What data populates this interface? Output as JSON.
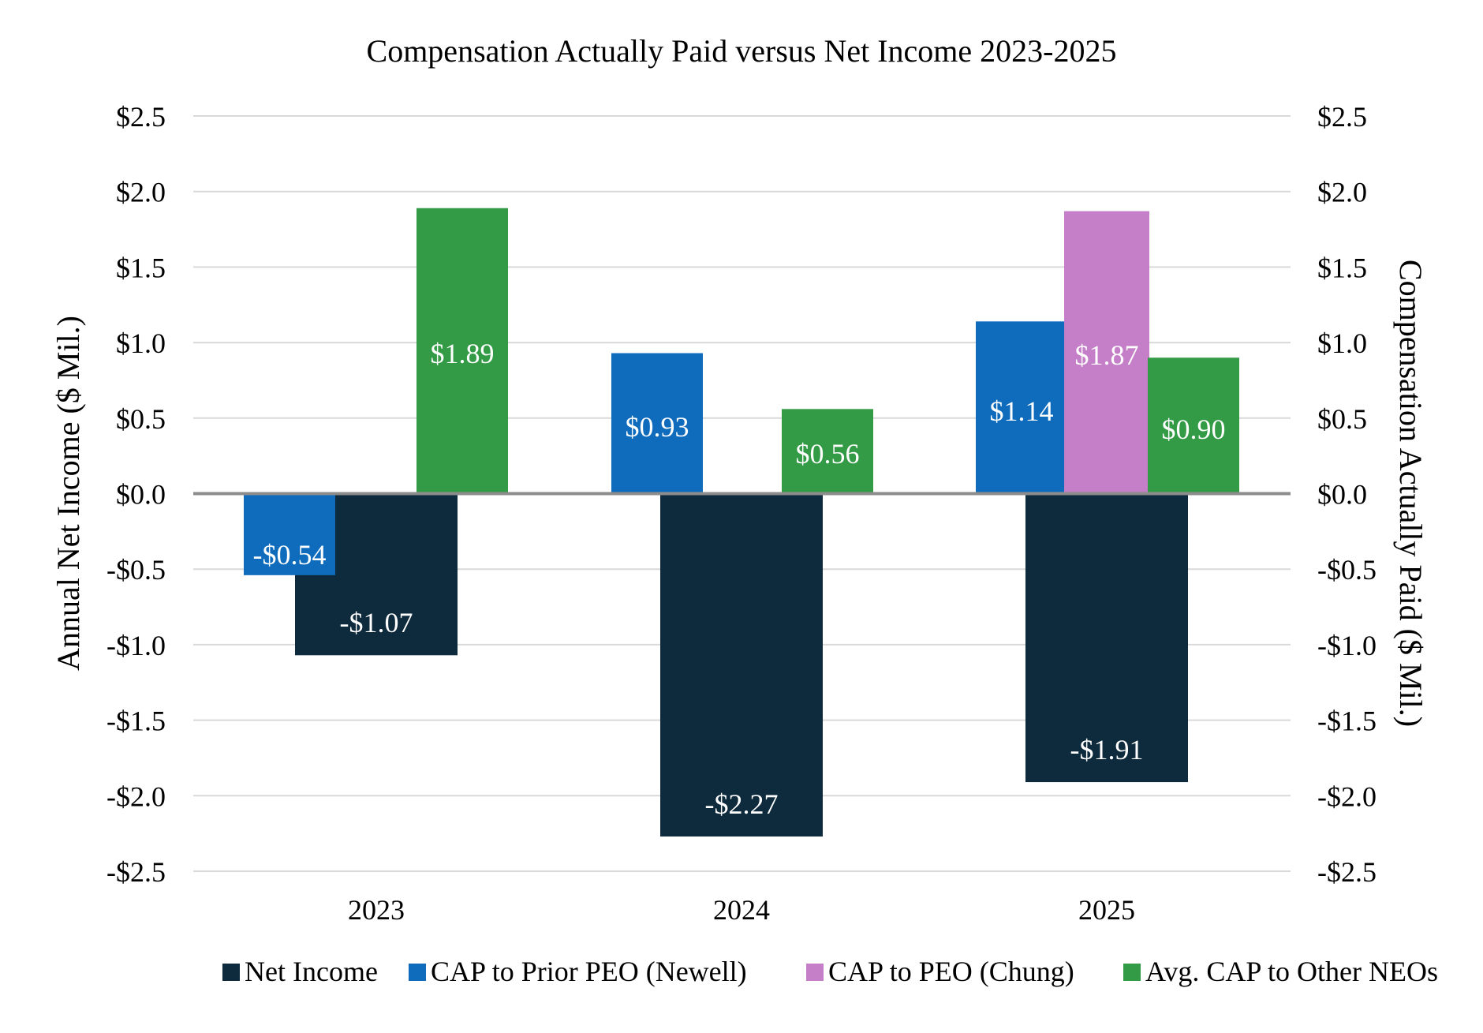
{
  "chart_data": {
    "type": "bar",
    "title": "Compensation Actually Paid versus Net Income 2023-2025",
    "categories": [
      "2023",
      "2024",
      "2025"
    ],
    "ylabel_left": "Annual Net Income ($ Mil.)",
    "ylabel_right": "Compensation Actually Paid ($ Mil.)",
    "ylim": [
      -2.5,
      2.5
    ],
    "ytick_step": 0.5,
    "yticks": [
      "$2.5",
      "$2.0",
      "$1.5",
      "$1.0",
      "$0.5",
      "$0.0",
      "-$0.5",
      "-$1.0",
      "-$1.5",
      "-$2.0",
      "-$2.5"
    ],
    "ytick_values": [
      2.5,
      2.0,
      1.5,
      1.0,
      0.5,
      0.0,
      -0.5,
      -1.0,
      -1.5,
      -2.0,
      -2.5
    ],
    "grid": true,
    "legend_position": "bottom",
    "series": [
      {
        "name": "Net Income",
        "axis": "left",
        "color": "#0e2a3d",
        "values": [
          -1.07,
          -2.27,
          -1.91
        ],
        "labels": [
          "-$1.07",
          "-$2.27",
          "-$1.91"
        ]
      },
      {
        "name": "CAP to Prior PEO (Newell)",
        "axis": "right",
        "color": "#0f6cbd",
        "values": [
          -0.54,
          0.93,
          1.14
        ],
        "labels": [
          "-$0.54",
          "$0.93",
          "$1.14"
        ]
      },
      {
        "name": "CAP to PEO (Chung)",
        "axis": "right",
        "color": "#c57fc8",
        "values": [
          null,
          null,
          1.87
        ],
        "labels": [
          null,
          null,
          "$1.87"
        ]
      },
      {
        "name": "Avg. CAP to Other NEOs",
        "axis": "right",
        "color": "#339a45",
        "values": [
          1.89,
          0.56,
          0.9
        ],
        "labels": [
          "$1.89",
          "$0.56",
          "$0.90"
        ]
      }
    ]
  }
}
